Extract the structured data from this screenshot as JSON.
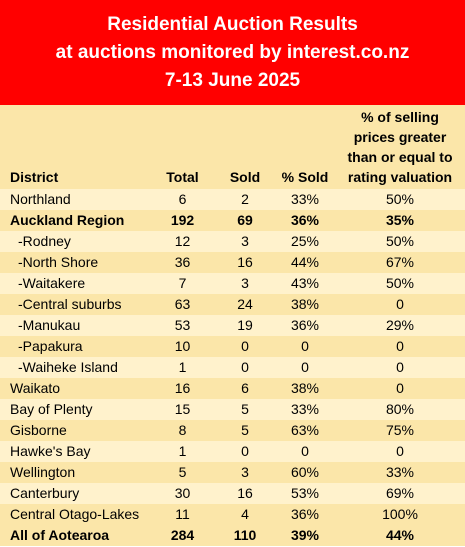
{
  "banner": {
    "line1": "Residential Auction Results",
    "line2": "at auctions monitored by interest.co.nz",
    "line3": "7-13 June 2025"
  },
  "table": {
    "headers": {
      "district": "District",
      "total": "Total",
      "sold": "Sold",
      "pct_sold": "% Sold",
      "rating": "% of selling prices greater than or equal to rating valuation"
    },
    "rows": [
      {
        "district": "Northland",
        "total": "6",
        "sold": "2",
        "pct_sold": "33%",
        "rating": "50%"
      },
      {
        "district": "Auckland Region",
        "total": "192",
        "sold": "69",
        "pct_sold": "36%",
        "rating": "35%"
      },
      {
        "district": "-Rodney",
        "total": "12",
        "sold": "3",
        "pct_sold": "25%",
        "rating": "50%"
      },
      {
        "district": "-North Shore",
        "total": "36",
        "sold": "16",
        "pct_sold": "44%",
        "rating": "67%"
      },
      {
        "district": "-Waitakere",
        "total": "7",
        "sold": "3",
        "pct_sold": "43%",
        "rating": "50%"
      },
      {
        "district": "-Central suburbs",
        "total": "63",
        "sold": "24",
        "pct_sold": "38%",
        "rating": "0"
      },
      {
        "district": "-Manukau",
        "total": "53",
        "sold": "19",
        "pct_sold": "36%",
        "rating": "29%"
      },
      {
        "district": "-Papakura",
        "total": "10",
        "sold": "0",
        "pct_sold": "0",
        "rating": "0"
      },
      {
        "district": "-Waiheke Island",
        "total": "1",
        "sold": "0",
        "pct_sold": "0",
        "rating": "0"
      },
      {
        "district": "Waikato",
        "total": "16",
        "sold": "6",
        "pct_sold": "38%",
        "rating": "0"
      },
      {
        "district": "Bay of Plenty",
        "total": "15",
        "sold": "5",
        "pct_sold": "33%",
        "rating": "80%"
      },
      {
        "district": "Gisborne",
        "total": "8",
        "sold": "5",
        "pct_sold": "63%",
        "rating": "75%"
      },
      {
        "district": "Hawke's Bay",
        "total": "1",
        "sold": "0",
        "pct_sold": "0",
        "rating": "0"
      },
      {
        "district": "Wellington",
        "total": "5",
        "sold": "3",
        "pct_sold": "60%",
        "rating": "33%"
      },
      {
        "district": "Canterbury",
        "total": "30",
        "sold": "16",
        "pct_sold": "53%",
        "rating": "69%"
      },
      {
        "district": "Central Otago-Lakes",
        "total": "11",
        "sold": "4",
        "pct_sold": "36%",
        "rating": "100%"
      },
      {
        "district": "All of Aotearoa",
        "total": "284",
        "sold": "110",
        "pct_sold": "39%",
        "rating": "44%"
      }
    ]
  }
}
